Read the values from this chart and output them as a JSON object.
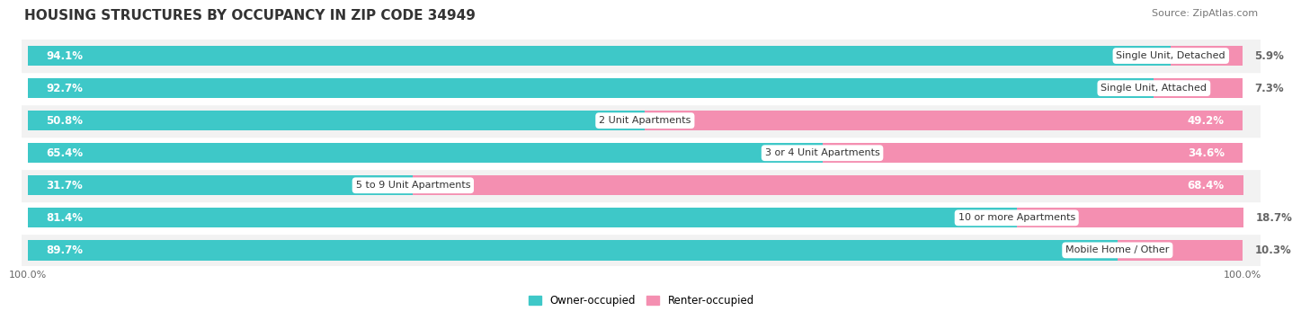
{
  "title": "HOUSING STRUCTURES BY OCCUPANCY IN ZIP CODE 34949",
  "source": "Source: ZipAtlas.com",
  "categories": [
    "Single Unit, Detached",
    "Single Unit, Attached",
    "2 Unit Apartments",
    "3 or 4 Unit Apartments",
    "5 to 9 Unit Apartments",
    "10 or more Apartments",
    "Mobile Home / Other"
  ],
  "owner_pct": [
    94.1,
    92.7,
    50.8,
    65.4,
    31.7,
    81.4,
    89.7
  ],
  "renter_pct": [
    5.9,
    7.3,
    49.2,
    34.6,
    68.4,
    18.7,
    10.3
  ],
  "owner_color": "#3ec8c8",
  "renter_color": "#f48fb1",
  "row_bg_even": "#f2f2f2",
  "row_bg_odd": "#ffffff",
  "title_fontsize": 11,
  "source_fontsize": 8,
  "label_fontsize": 8.5,
  "category_fontsize": 8,
  "bar_height": 0.62,
  "total_width": 100.0
}
